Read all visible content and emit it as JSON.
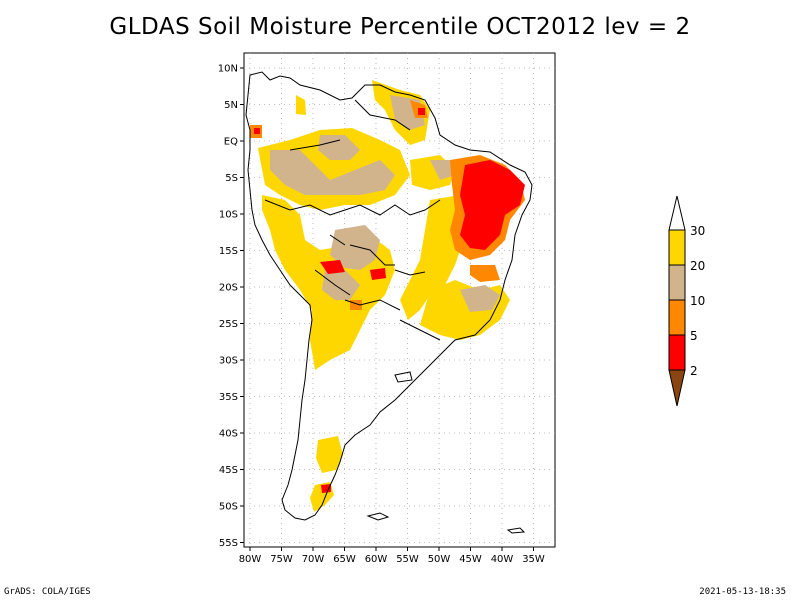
{
  "title": "GLDAS Soil Moisture Percentile OCT2012 lev = 2",
  "map": {
    "lat_labels": [
      "10N",
      "5N",
      "EQ",
      "5S",
      "10S",
      "15S",
      "20S",
      "25S",
      "30S",
      "35S",
      "40S",
      "45S",
      "50S",
      "55S"
    ],
    "lon_labels": [
      "80W",
      "75W",
      "70W",
      "65W",
      "60W",
      "55W",
      "50W",
      "45W",
      "40W",
      "35W"
    ]
  },
  "colorbar": {
    "labels": [
      "2",
      "5",
      "10",
      "20",
      "30"
    ],
    "colors": {
      "lt2": "#8b4513",
      "2-5": "#ff0000",
      "5-10": "#ff8800",
      "10-20": "#d2b48c",
      "20-30": "#ffd700",
      "gt30": "#ffffff"
    }
  },
  "footer": {
    "left": "GrADS: COLA/IGES",
    "right": "2021-05-13-18:35"
  }
}
